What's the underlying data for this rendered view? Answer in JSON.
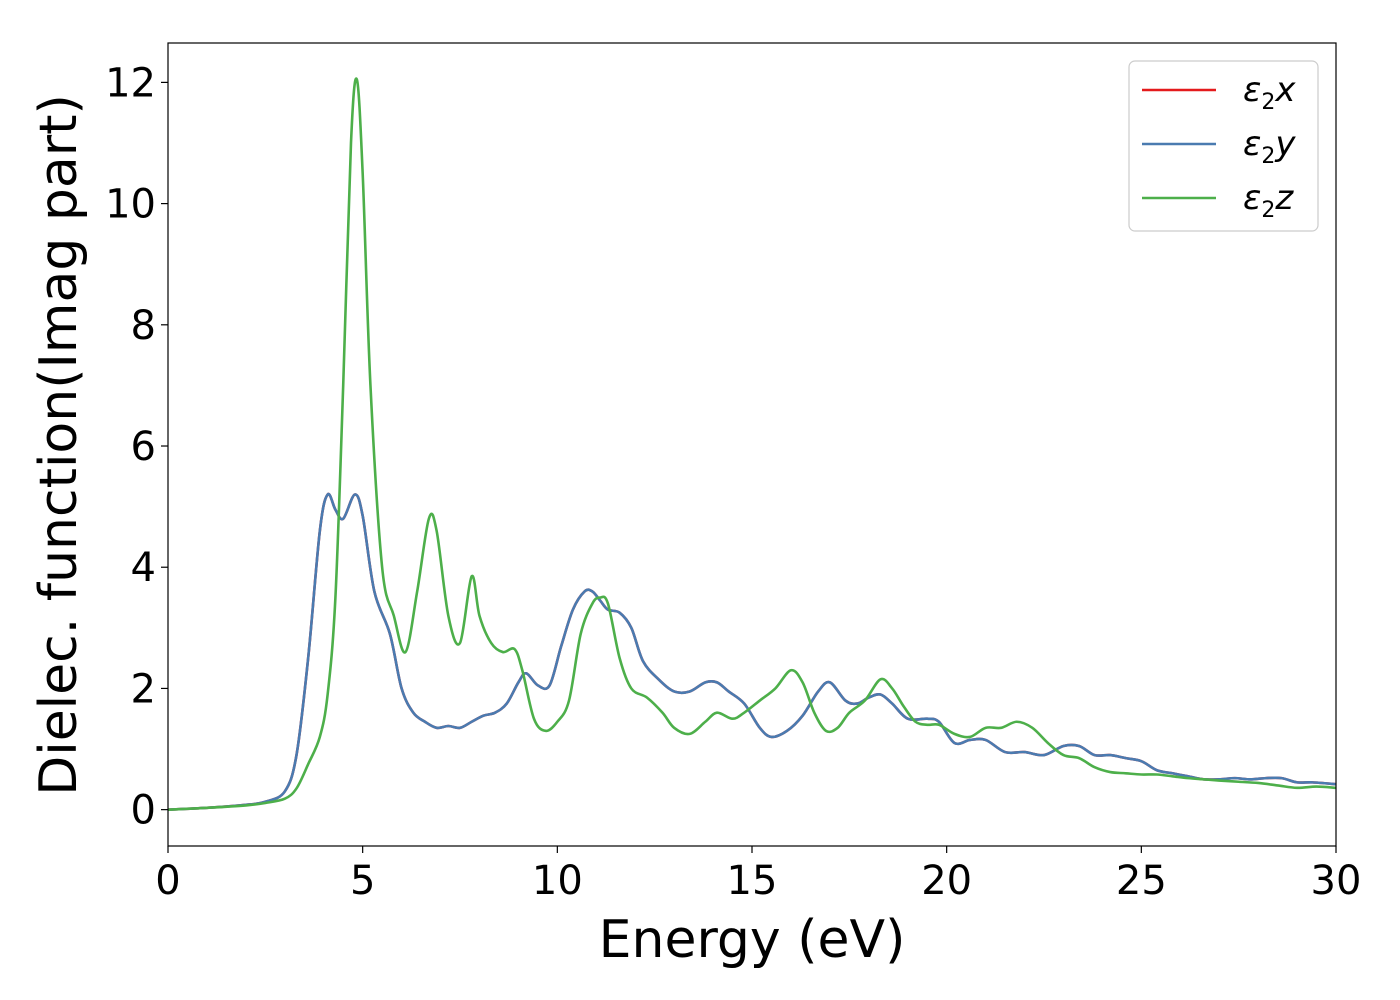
{
  "chart_data": {
    "type": "line",
    "xlabel": "Energy (eV)",
    "ylabel": "Dielec. function(Imag part)",
    "xlim": [
      0,
      30
    ],
    "ylim": [
      -0.6,
      12.65
    ],
    "xticks": [
      0,
      5,
      10,
      15,
      20,
      25,
      30
    ],
    "yticks": [
      0,
      2,
      4,
      6,
      8,
      10,
      12
    ],
    "grid": false,
    "legend_position": "top-right",
    "series": [
      {
        "name": "ε2x",
        "color": "#e41a1c",
        "x": [
          0,
          1,
          2,
          2.5,
          3,
          3.3,
          3.6,
          3.9,
          4.1,
          4.3,
          4.5,
          4.8,
          5.0,
          5.3,
          5.7,
          6.0,
          6.3,
          6.6,
          6.9,
          7.2,
          7.5,
          7.8,
          8.1,
          8.4,
          8.7,
          9.0,
          9.2,
          9.5,
          9.8,
          10.1,
          10.4,
          10.7,
          10.9,
          11.1,
          11.3,
          11.6,
          11.9,
          12.2,
          12.6,
          13.0,
          13.4,
          13.8,
          14.1,
          14.4,
          14.8,
          15.2,
          15.5,
          15.9,
          16.3,
          16.7,
          17.0,
          17.4,
          17.7,
          18.0,
          18.3,
          18.6,
          19.0,
          19.5,
          19.8,
          20.2,
          20.6,
          21.0,
          21.5,
          22.0,
          22.5,
          23.0,
          23.4,
          23.8,
          24.2,
          24.6,
          25.0,
          25.4,
          25.8,
          26.2,
          26.6,
          27.0,
          27.4,
          27.8,
          28.2,
          28.6,
          29.0,
          29.4,
          30.0
        ],
        "y": [
          0.0,
          0.03,
          0.08,
          0.13,
          0.3,
          0.9,
          2.5,
          4.6,
          5.2,
          4.95,
          4.8,
          5.2,
          4.85,
          3.6,
          2.9,
          2.0,
          1.6,
          1.45,
          1.35,
          1.38,
          1.35,
          1.45,
          1.55,
          1.6,
          1.75,
          2.1,
          2.25,
          2.05,
          2.05,
          2.7,
          3.3,
          3.6,
          3.6,
          3.45,
          3.3,
          3.25,
          3.0,
          2.45,
          2.15,
          1.95,
          1.95,
          2.1,
          2.1,
          1.95,
          1.75,
          1.35,
          1.2,
          1.3,
          1.55,
          1.95,
          2.1,
          1.8,
          1.75,
          1.85,
          1.9,
          1.75,
          1.5,
          1.5,
          1.45,
          1.1,
          1.15,
          1.15,
          0.95,
          0.95,
          0.9,
          1.05,
          1.05,
          0.9,
          0.9,
          0.85,
          0.8,
          0.65,
          0.6,
          0.55,
          0.5,
          0.5,
          0.52,
          0.5,
          0.52,
          0.52,
          0.45,
          0.45,
          0.42
        ]
      },
      {
        "name": "ε2y",
        "color": "#4a7bb0",
        "x": [
          0,
          1,
          2,
          2.5,
          3,
          3.3,
          3.6,
          3.9,
          4.1,
          4.3,
          4.5,
          4.8,
          5.0,
          5.3,
          5.7,
          6.0,
          6.3,
          6.6,
          6.9,
          7.2,
          7.5,
          7.8,
          8.1,
          8.4,
          8.7,
          9.0,
          9.2,
          9.5,
          9.8,
          10.1,
          10.4,
          10.7,
          10.9,
          11.1,
          11.3,
          11.6,
          11.9,
          12.2,
          12.6,
          13.0,
          13.4,
          13.8,
          14.1,
          14.4,
          14.8,
          15.2,
          15.5,
          15.9,
          16.3,
          16.7,
          17.0,
          17.4,
          17.7,
          18.0,
          18.3,
          18.6,
          19.0,
          19.5,
          19.8,
          20.2,
          20.6,
          21.0,
          21.5,
          22.0,
          22.5,
          23.0,
          23.4,
          23.8,
          24.2,
          24.6,
          25.0,
          25.4,
          25.8,
          26.2,
          26.6,
          27.0,
          27.4,
          27.8,
          28.2,
          28.6,
          29.0,
          29.4,
          30.0
        ],
        "y": [
          0.0,
          0.03,
          0.08,
          0.13,
          0.3,
          0.9,
          2.5,
          4.6,
          5.2,
          4.95,
          4.8,
          5.2,
          4.85,
          3.6,
          2.9,
          2.0,
          1.6,
          1.45,
          1.35,
          1.38,
          1.35,
          1.45,
          1.55,
          1.6,
          1.75,
          2.1,
          2.25,
          2.05,
          2.05,
          2.7,
          3.3,
          3.6,
          3.6,
          3.45,
          3.3,
          3.25,
          3.0,
          2.45,
          2.15,
          1.95,
          1.95,
          2.1,
          2.1,
          1.95,
          1.75,
          1.35,
          1.2,
          1.3,
          1.55,
          1.95,
          2.1,
          1.8,
          1.75,
          1.85,
          1.9,
          1.75,
          1.5,
          1.5,
          1.45,
          1.1,
          1.15,
          1.15,
          0.95,
          0.95,
          0.9,
          1.05,
          1.05,
          0.9,
          0.9,
          0.85,
          0.8,
          0.65,
          0.6,
          0.55,
          0.5,
          0.5,
          0.52,
          0.5,
          0.52,
          0.52,
          0.45,
          0.45,
          0.42
        ]
      },
      {
        "name": "ε2z",
        "color": "#4daf4a",
        "x": [
          0,
          1,
          2,
          2.5,
          3,
          3.3,
          3.6,
          3.9,
          4.1,
          4.3,
          4.5,
          4.7,
          4.85,
          5.0,
          5.2,
          5.5,
          5.8,
          6.1,
          6.4,
          6.7,
          6.9,
          7.2,
          7.5,
          7.8,
          8.0,
          8.3,
          8.6,
          8.9,
          9.1,
          9.4,
          9.7,
          10.0,
          10.3,
          10.6,
          10.9,
          11.1,
          11.3,
          11.6,
          11.9,
          12.3,
          12.7,
          13.0,
          13.4,
          13.8,
          14.1,
          14.5,
          14.8,
          15.2,
          15.6,
          16.0,
          16.3,
          16.6,
          16.9,
          17.2,
          17.5,
          17.9,
          18.3,
          18.6,
          18.9,
          19.2,
          19.5,
          19.8,
          20.2,
          20.6,
          21.0,
          21.4,
          21.8,
          22.2,
          22.6,
          23.0,
          23.4,
          23.8,
          24.2,
          24.6,
          25.0,
          25.4,
          25.8,
          26.2,
          26.6,
          27.0,
          27.5,
          28.0,
          28.5,
          29.0,
          29.5,
          30.0
        ],
        "y": [
          0.0,
          0.03,
          0.07,
          0.11,
          0.18,
          0.35,
          0.75,
          1.2,
          1.9,
          3.5,
          7.0,
          11.0,
          12.05,
          10.5,
          7.0,
          4.0,
          3.2,
          2.6,
          3.6,
          4.8,
          4.6,
          3.2,
          2.75,
          3.85,
          3.2,
          2.75,
          2.6,
          2.65,
          2.3,
          1.5,
          1.3,
          1.45,
          1.8,
          2.9,
          3.4,
          3.5,
          3.4,
          2.5,
          2.0,
          1.85,
          1.6,
          1.35,
          1.25,
          1.45,
          1.6,
          1.5,
          1.6,
          1.8,
          2.0,
          2.3,
          2.1,
          1.6,
          1.3,
          1.35,
          1.6,
          1.8,
          2.15,
          2.0,
          1.7,
          1.45,
          1.4,
          1.4,
          1.25,
          1.2,
          1.35,
          1.35,
          1.45,
          1.35,
          1.1,
          0.9,
          0.85,
          0.7,
          0.62,
          0.6,
          0.58,
          0.58,
          0.55,
          0.52,
          0.5,
          0.48,
          0.46,
          0.44,
          0.4,
          0.36,
          0.38,
          0.36
        ]
      }
    ]
  }
}
